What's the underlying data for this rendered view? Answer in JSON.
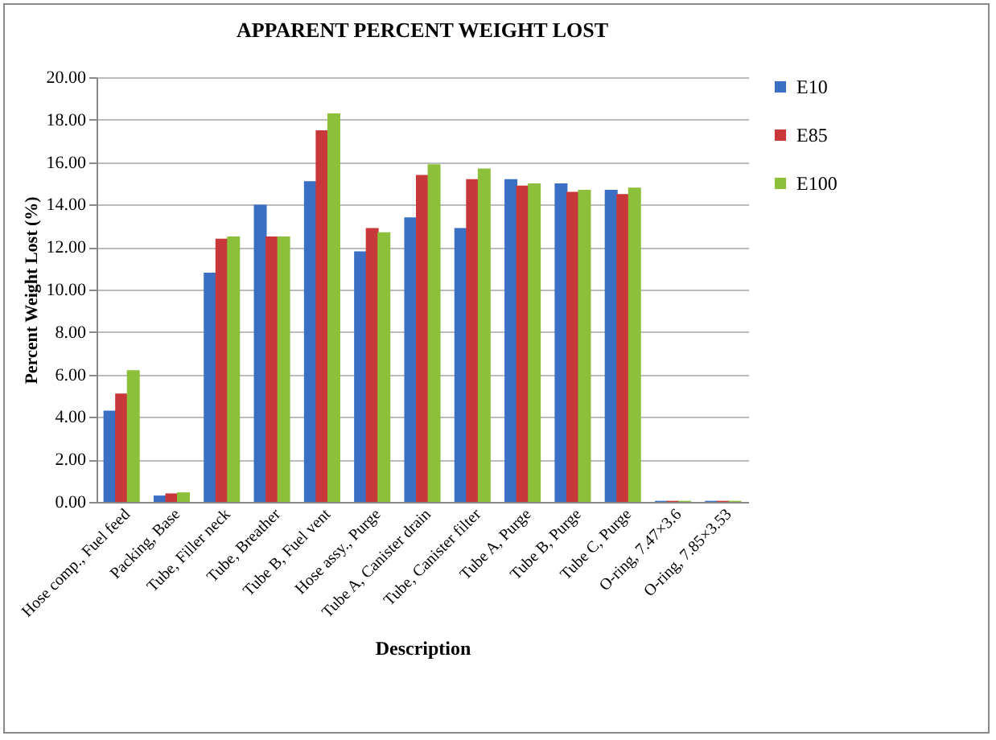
{
  "chart_data": {
    "type": "bar",
    "title": "APPARENT PERCENT WEIGHT LOST",
    "xlabel": "Description",
    "ylabel": "Percent Weight Lost (%)",
    "categories": [
      "Hose comp., Fuel feed",
      "Packing, Base",
      "Tube, Filler neck",
      "Tube, Breather",
      "Tube B, Fuel vent",
      "Hose assy., Purge",
      "Tube A, Canister drain",
      "Tube, Canister filter",
      "Tube A, Purge",
      "Tube B, Purge",
      "Tube C, Purge",
      "O-ring, 7.47×3.6",
      "O-ring, 7.85×3.53"
    ],
    "series": [
      {
        "name": "E10",
        "color": "#3a6fc4",
        "values": [
          4.3,
          0.3,
          10.8,
          14.0,
          15.1,
          11.8,
          13.4,
          12.9,
          15.2,
          15.0,
          14.7,
          0.05,
          0.05
        ]
      },
      {
        "name": "E85",
        "color": "#c8383a",
        "values": [
          5.1,
          0.4,
          12.4,
          12.5,
          17.5,
          12.9,
          15.4,
          15.2,
          14.9,
          14.6,
          14.5,
          0.05,
          0.05
        ]
      },
      {
        "name": "E100",
        "color": "#8cbf3a",
        "values": [
          6.2,
          0.45,
          12.5,
          12.5,
          18.3,
          12.7,
          15.9,
          15.7,
          15.0,
          14.7,
          14.8,
          0.05,
          0.05
        ]
      }
    ],
    "ylim": [
      0,
      20
    ],
    "yticks": [
      {
        "value": 0,
        "label": "0.00"
      },
      {
        "value": 2,
        "label": "2.00"
      },
      {
        "value": 4,
        "label": "4.00"
      },
      {
        "value": 6,
        "label": "6.00"
      },
      {
        "value": 8,
        "label": "8.00"
      },
      {
        "value": 10,
        "label": "10.00"
      },
      {
        "value": 12,
        "label": "12.00"
      },
      {
        "value": 14,
        "label": "14.00"
      },
      {
        "value": 16,
        "label": "16.00"
      },
      {
        "value": 18,
        "label": "18.00"
      },
      {
        "value": 20,
        "label": "20.00"
      }
    ],
    "grid": "y",
    "legend": "right"
  }
}
